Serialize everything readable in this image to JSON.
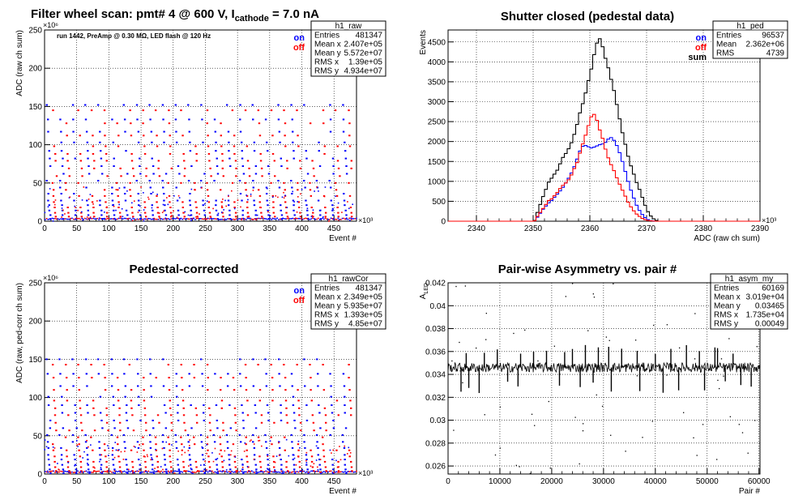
{
  "colors": {
    "on": "#0000ff",
    "off": "#ff0000",
    "sum": "#000000",
    "grid": "#000000"
  },
  "chart_data": [
    {
      "id": "raw",
      "type": "scatter",
      "title_main": "Filter wheel scan: pmt#   4 @   600 V, I",
      "title_sub": "cathode",
      "title_end": " = 7.0 nA",
      "note": "run 1442, PreAmp @ 0.30 MΩ,  LED flash @  120 Hz",
      "xlabel": "Event #",
      "ylabel": "ADC (raw ch sum)",
      "x_exp": "×10³",
      "y_exp": "×10⁶",
      "xlim": [
        0,
        485
      ],
      "ylim": [
        0,
        250
      ],
      "xticks": [
        0,
        50,
        100,
        150,
        200,
        250,
        300,
        350,
        400,
        450
      ],
      "yticks": [
        0,
        50,
        100,
        150,
        200,
        250
      ],
      "grid": true,
      "legend": [
        "on",
        "off"
      ],
      "stats": {
        "name": "h1_raw",
        "rows": [
          [
            "Entries",
            "481347"
          ],
          [
            "Mean x",
            "2.407e+05"
          ],
          [
            "Mean y",
            "5.572e+07"
          ],
          [
            "RMS x",
            "1.39e+05"
          ],
          [
            "RMS y",
            "4.934e+07"
          ]
        ]
      },
      "on_levels": [
        152,
        133,
        117,
        103,
        92,
        82,
        72,
        62,
        53,
        44,
        36,
        27,
        21,
        14,
        8,
        3
      ],
      "off_levels": [
        145,
        128,
        112,
        98,
        88,
        79,
        69,
        59,
        50,
        41,
        33,
        25,
        18,
        11,
        6
      ],
      "cycle_width": 20
    },
    {
      "id": "ped",
      "type": "histogram",
      "title": "Shutter closed (pedestal data)",
      "xlabel": "ADC (raw ch sum)",
      "ylabel": "Events",
      "x_exp": "×10³",
      "xlim": [
        2335,
        2390
      ],
      "ylim": [
        0,
        4800
      ],
      "xticks": [
        2340,
        2350,
        2360,
        2370,
        2380,
        2390
      ],
      "yticks": [
        0,
        500,
        1000,
        1500,
        2000,
        2500,
        3000,
        3500,
        4000,
        4500
      ],
      "grid": true,
      "legend": [
        "on",
        "off",
        "sum"
      ],
      "stats": {
        "name": "h1_ped",
        "rows": [
          [
            "Entries",
            "96537"
          ],
          [
            "Mean",
            "2.362e+06"
          ],
          [
            "RMS",
            "4739"
          ]
        ]
      },
      "bin_start": 2350.0,
      "bin_width": 0.5,
      "series": [
        {
          "name": "sum",
          "values": [
            20,
            220,
            420,
            620,
            800,
            980,
            1080,
            1180,
            1280,
            1440,
            1600,
            1700,
            1820,
            1970,
            2180,
            2430,
            2720,
            2950,
            3220,
            3530,
            3820,
            4180,
            4470,
            4580,
            4380,
            4090,
            3850,
            3560,
            3280,
            2930,
            2570,
            2220,
            1930,
            1630,
            1390,
            1180,
            970,
            800,
            600,
            400,
            240,
            130,
            60,
            20
          ]
        },
        {
          "name": "on",
          "values": [
            10,
            100,
            200,
            300,
            380,
            460,
            520,
            600,
            680,
            760,
            850,
            960,
            1080,
            1210,
            1370,
            1560,
            1760,
            1880,
            1900,
            1870,
            1840,
            1860,
            1890,
            1920,
            1940,
            1980,
            2060,
            2100,
            2030,
            1900,
            1720,
            1500,
            1250,
            1000,
            780,
            580,
            400,
            270,
            170,
            90,
            40,
            15,
            5,
            0
          ]
        },
        {
          "name": "off",
          "values": [
            10,
            120,
            220,
            320,
            420,
            520,
            560,
            640,
            720,
            820,
            900,
            960,
            1040,
            1160,
            1320,
            1470,
            1710,
            1940,
            2160,
            2400,
            2620,
            2680,
            2530,
            2290,
            2080,
            1810,
            1590,
            1420,
            1270,
            1090,
            930,
            780,
            630,
            480,
            360,
            260,
            180,
            120,
            70,
            40,
            20,
            10,
            5,
            0
          ]
        }
      ]
    },
    {
      "id": "rawCor",
      "type": "scatter",
      "title": "Pedestal-corrected",
      "xlabel": "Event #",
      "ylabel": "ADC (raw, ped-corr ch sum)",
      "x_exp": "×10³",
      "y_exp": "×10⁶",
      "xlim": [
        0,
        485
      ],
      "ylim": [
        0,
        250
      ],
      "xticks": [
        0,
        50,
        100,
        150,
        200,
        250,
        300,
        350,
        400,
        450
      ],
      "yticks": [
        0,
        50,
        100,
        150,
        200,
        250
      ],
      "grid": true,
      "legend": [
        "on",
        "off"
      ],
      "stats": {
        "name": "h1_rawCor",
        "rows": [
          [
            "Entries",
            "481347"
          ],
          [
            "Mean x",
            "2.349e+05"
          ],
          [
            "Mean y",
            "5.935e+07"
          ],
          [
            "RMS x",
            "1.393e+05"
          ],
          [
            "RMS y",
            "4.85e+07"
          ]
        ]
      },
      "on_levels": [
        150,
        131,
        115,
        101,
        90,
        80,
        70,
        60,
        51,
        42,
        34,
        25,
        19,
        12,
        6,
        1
      ],
      "off_levels": [
        143,
        126,
        110,
        96,
        86,
        77,
        67,
        57,
        48,
        39,
        31,
        23,
        16,
        9,
        4
      ],
      "cycle_width": 20
    },
    {
      "id": "asym",
      "type": "line",
      "title": "Pair-wise Asymmetry vs. pair #",
      "xlabel": "Pair #",
      "ylabel": "A",
      "ylabel_sub": "LED",
      "xlim": [
        0,
        60200
      ],
      "ylim": [
        0.0253,
        0.042
      ],
      "xticks": [
        0,
        10000,
        20000,
        30000,
        40000,
        50000,
        60000
      ],
      "yticks": [
        0.026,
        0.028,
        0.03,
        0.032,
        0.034,
        0.036,
        0.038,
        0.04,
        0.042
      ],
      "grid": true,
      "stats": {
        "name": "h1_asym_my",
        "rows": [
          [
            "Entries",
            "60169"
          ],
          [
            "Mean x",
            "3.019e+04"
          ],
          [
            "Mean y",
            "0.03465"
          ],
          [
            "RMS x",
            "1.735e+04"
          ],
          [
            "RMS y",
            "0.00049"
          ]
        ]
      },
      "mean": 0.0346,
      "spikes_up": [
        3500,
        7000,
        9500,
        14000,
        16500,
        19000,
        22500,
        24000,
        26500,
        29000,
        31000,
        33500,
        36500,
        40000,
        43000,
        46000,
        48500,
        51500,
        52000,
        55000
      ],
      "spikes_down": [
        2500,
        4000,
        6000,
        11500,
        13500,
        21500,
        25500,
        28000,
        31500,
        37000,
        41500,
        44500,
        49500,
        53500,
        56500,
        58500
      ]
    }
  ]
}
